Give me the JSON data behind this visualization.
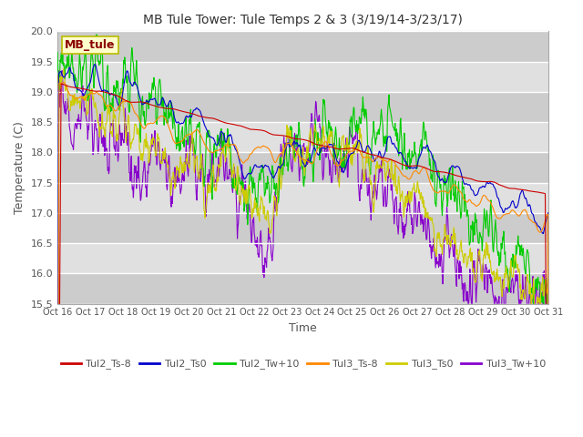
{
  "title": "MB Tule Tower: Tule Temps 2 & 3 (3/19/14-3/23/17)",
  "xlabel": "Time",
  "ylabel": "Temperature (C)",
  "ylim": [
    15.5,
    20.0
  ],
  "background_color": "#ffffff",
  "plot_bg_color": "#d8d8d8",
  "legend_label": "MB_tule",
  "series_colors": {
    "Tul2_Ts-8": "#cc0000",
    "Tul2_Ts0": "#0000cc",
    "Tul2_Tw+10": "#00cc00",
    "Tul3_Ts-8": "#ff8800",
    "Tul3_Ts0": "#cccc00",
    "Tul3_Tw+10": "#8800cc"
  },
  "xtick_labels": [
    "Oct 16",
    "Oct 17",
    "Oct 18",
    "Oct 19",
    "Oct 20",
    "Oct 21",
    "Oct 22",
    "Oct 23",
    "Oct 24",
    "Oct 25",
    "Oct 26",
    "Oct 27",
    "Oct 28",
    "Oct 29",
    "Oct 30",
    "Oct 31"
  ],
  "yticks": [
    15.5,
    16.0,
    16.5,
    17.0,
    17.5,
    18.0,
    18.5,
    19.0,
    19.5,
    20.0
  ],
  "n_points": 960
}
